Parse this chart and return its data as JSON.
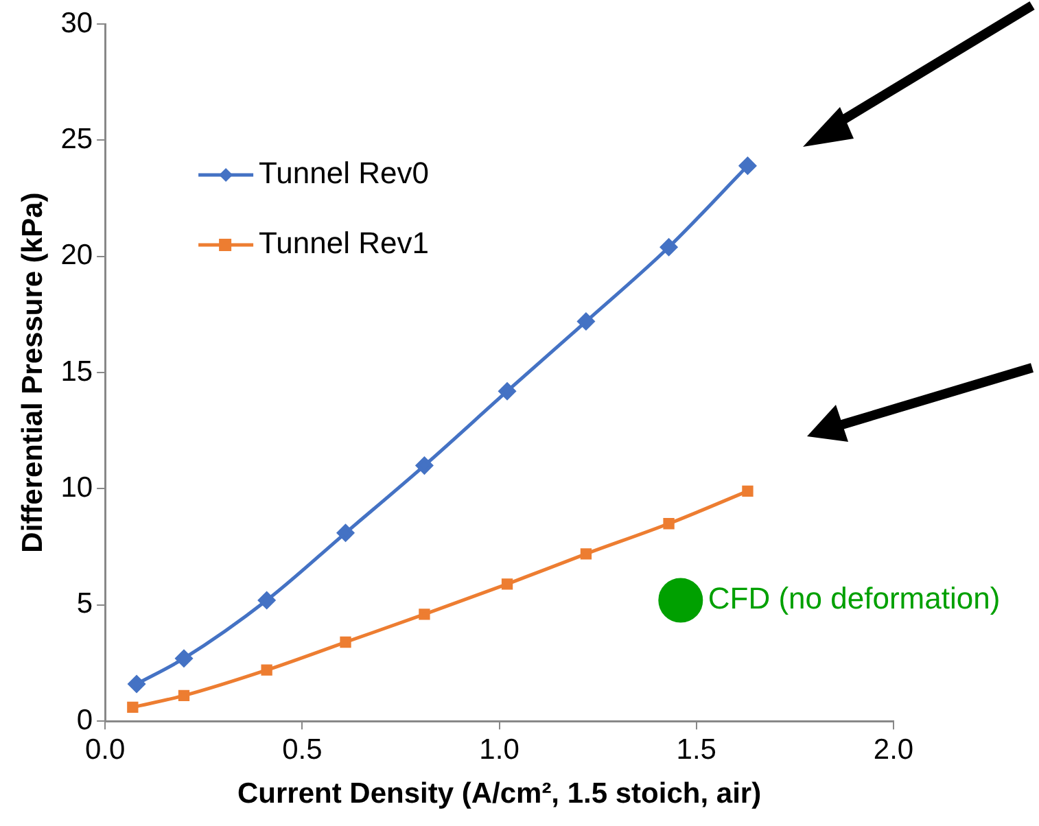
{
  "chart_data": {
    "type": "line",
    "xlabel": "Current Density (A/cm², 1.5 stoich, air)",
    "ylabel": "Differential Pressure (kPa)",
    "xlim": [
      0,
      2
    ],
    "xticks": [
      {
        "value": 0,
        "label": "0.0"
      },
      {
        "value": 0.5,
        "label": "0.5"
      },
      {
        "value": 1,
        "label": "1.0"
      },
      {
        "value": 1.5,
        "label": "1.5"
      },
      {
        "value": 2,
        "label": "2.0"
      }
    ],
    "ylim": [
      0,
      30
    ],
    "yticks": [
      0,
      5,
      10,
      15,
      20,
      25,
      30
    ],
    "grid": false,
    "legend": "top left",
    "series": [
      {
        "name": "Tunnel Rev0",
        "color": "#4472c4",
        "marker": "diamond",
        "x": [
          0.08,
          0.2,
          0.41,
          0.61,
          0.81,
          1.02,
          1.22,
          1.43,
          1.63
        ],
        "values": [
          1.6,
          2.7,
          5.2,
          8.1,
          11.0,
          14.2,
          17.2,
          20.4,
          23.9
        ]
      },
      {
        "name": "Tunnel Rev1",
        "color": "#ed7d31",
        "marker": "square",
        "x": [
          0.07,
          0.2,
          0.41,
          0.61,
          0.81,
          1.02,
          1.22,
          1.43,
          1.63
        ],
        "values": [
          0.6,
          1.1,
          2.2,
          3.4,
          4.6,
          5.9,
          7.2,
          8.5,
          9.9
        ]
      },
      {
        "name": "CFD (no deformation)",
        "type": "scatter",
        "color": "#00a000",
        "marker": "circle",
        "x": [
          1.46
        ],
        "values": [
          5.2
        ]
      }
    ]
  }
}
